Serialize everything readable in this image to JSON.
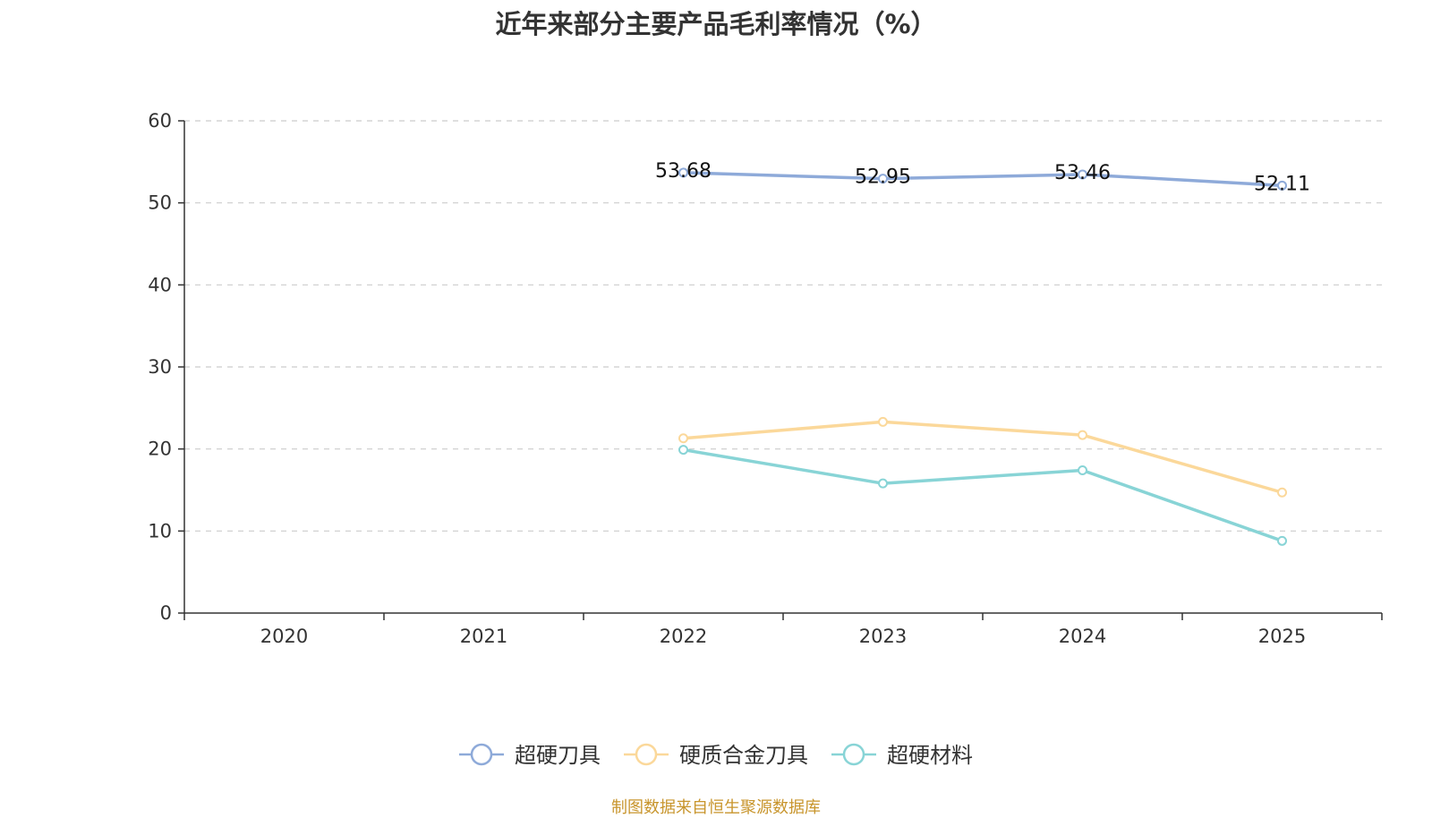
{
  "chart_data": {
    "type": "line",
    "title": "近年来部分主要产品毛利率情况（%）",
    "categories": [
      "2020",
      "2021",
      "2022",
      "2023",
      "2024",
      "2025"
    ],
    "ylim": [
      0,
      60
    ],
    "yticks": [
      0,
      10,
      20,
      30,
      40,
      50,
      60
    ],
    "grid": true,
    "legend_position": "bottom",
    "series": [
      {
        "name": "超硬刀具",
        "color": "#8eaad9",
        "values": [
          null,
          null,
          53.68,
          52.95,
          53.46,
          52.11
        ],
        "labels": [
          "",
          "",
          "53.68",
          "52.95",
          "53.46",
          "52.11"
        ]
      },
      {
        "name": "硬质合金刀具",
        "color": "#fbd89a",
        "values": [
          null,
          null,
          21.3,
          23.3,
          21.7,
          14.7
        ]
      },
      {
        "name": "超硬材料",
        "color": "#88d4d6",
        "values": [
          null,
          null,
          19.9,
          15.8,
          17.4,
          8.8
        ]
      }
    ]
  },
  "source_note": "制图数据来自恒生聚源数据库"
}
